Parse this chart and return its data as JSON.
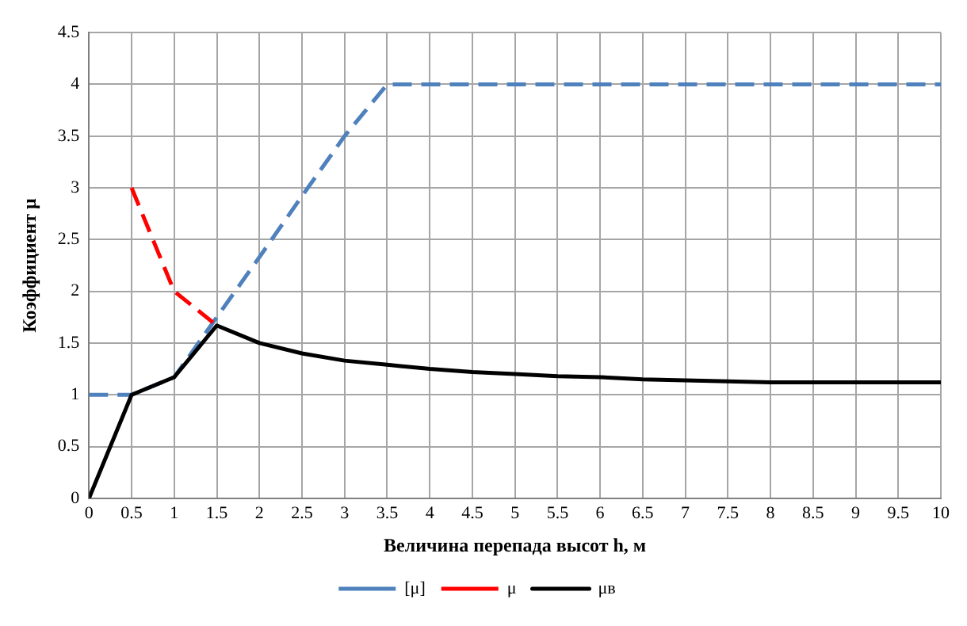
{
  "chart_data": {
    "type": "line",
    "xlabel": "Величина перепада высот h, м",
    "ylabel": "Коэффициент μ",
    "x": [
      0,
      0.5,
      1,
      1.5,
      2,
      2.5,
      3,
      3.5,
      4,
      4.5,
      5,
      5.5,
      6,
      6.5,
      7,
      7.5,
      8,
      8.5,
      9,
      9.5,
      10
    ],
    "series": [
      {
        "name": "[μ]",
        "color": "#4f81bd",
        "line_style": "dashed",
        "values": [
          1,
          1,
          1.17,
          1.75,
          2.33,
          2.92,
          3.5,
          4,
          4,
          4,
          4,
          4,
          4,
          4,
          4,
          4,
          4,
          4,
          4,
          4,
          4
        ]
      },
      {
        "name": "μ",
        "color": "#ff0000",
        "line_style": "dashed",
        "values": [
          null,
          3,
          2,
          1.67,
          null,
          null,
          null,
          null,
          null,
          null,
          null,
          null,
          null,
          null,
          null,
          null,
          null,
          null,
          null,
          null,
          null
        ]
      },
      {
        "name": "μв",
        "color": "#000000",
        "line_style": "solid",
        "values": [
          0,
          1,
          1.17,
          1.67,
          1.5,
          1.4,
          1.33,
          1.29,
          1.25,
          1.22,
          1.2,
          1.18,
          1.17,
          1.15,
          1.14,
          1.13,
          1.12,
          1.12,
          1.12,
          1.12,
          1.12
        ]
      }
    ],
    "xlim": [
      0,
      10
    ],
    "xticks": [
      0,
      0.5,
      1,
      1.5,
      2,
      2.5,
      3,
      3.5,
      4,
      4.5,
      5,
      5.5,
      6,
      6.5,
      7,
      7.5,
      8,
      8.5,
      9,
      9.5,
      10
    ],
    "ylim": [
      0,
      4.5
    ],
    "yticks": [
      0,
      0.5,
      1,
      1.5,
      2,
      2.5,
      3,
      3.5,
      4,
      4.5
    ],
    "grid": true,
    "legend": "bottom",
    "marker": "none"
  }
}
